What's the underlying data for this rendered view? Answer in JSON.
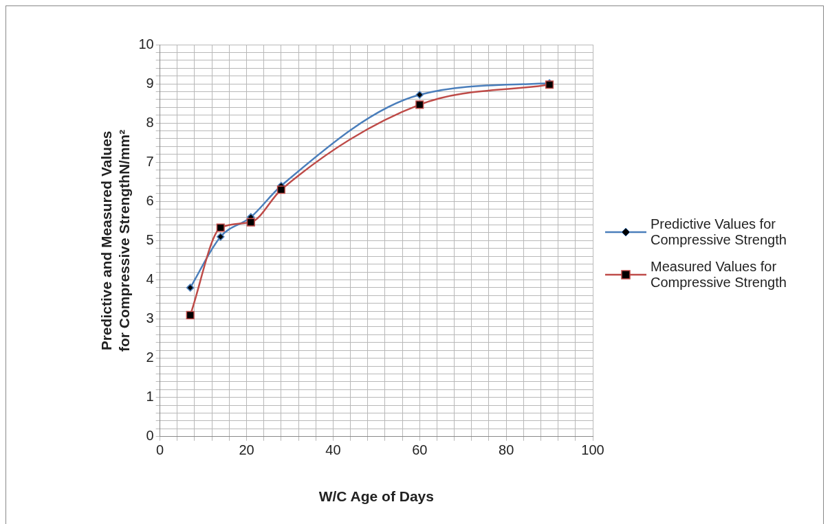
{
  "chart_data": {
    "type": "line",
    "xlabel": "W/C Age of Days",
    "ylabel": "Predictive and Measured Values for Compressive StrengthN/mm²",
    "xlim": [
      0,
      100
    ],
    "xticks": [
      0,
      {
        "value": 4,
        "label": null
      },
      {
        "value": 8,
        "label": null
      },
      {
        "value": 12,
        "label": null
      },
      {
        "value": 16,
        "label": null
      },
      20,
      {
        "value": 24,
        "label": null
      },
      {
        "value": 28,
        "label": null
      },
      {
        "value": 32,
        "label": null
      },
      {
        "value": 36,
        "label": null
      },
      40,
      {
        "value": 44,
        "label": null
      },
      {
        "value": 48,
        "label": null
      },
      {
        "value": 52,
        "label": null
      },
      {
        "value": 56,
        "label": null
      },
      60,
      {
        "value": 64,
        "label": null
      },
      {
        "value": 68,
        "label": null
      },
      {
        "value": 72,
        "label": null
      },
      {
        "value": 76,
        "label": null
      },
      80,
      {
        "value": 84,
        "label": null
      },
      {
        "value": 88,
        "label": null
      },
      {
        "value": 92,
        "label": null
      },
      {
        "value": 96,
        "label": null
      },
      100
    ],
    "ylim": [
      0,
      10
    ],
    "yticks": [
      0,
      {
        "value": 0.2,
        "label": null
      },
      {
        "value": 0.4,
        "label": null
      },
      {
        "value": 0.6,
        "label": null
      },
      {
        "value": 0.8,
        "label": null
      },
      1,
      {
        "value": 1.2,
        "label": null
      },
      {
        "value": 1.4,
        "label": null
      },
      {
        "value": 1.6,
        "label": null
      },
      {
        "value": 1.8,
        "label": null
      },
      2,
      {
        "value": 2.2,
        "label": null
      },
      {
        "value": 2.4,
        "label": null
      },
      {
        "value": 2.6,
        "label": null
      },
      {
        "value": 2.8,
        "label": null
      },
      3,
      {
        "value": 3.2,
        "label": null
      },
      {
        "value": 3.4,
        "label": null
      },
      {
        "value": 3.6,
        "label": null
      },
      {
        "value": 3.8,
        "label": null
      },
      4,
      {
        "value": 4.2,
        "label": null
      },
      {
        "value": 4.4,
        "label": null
      },
      {
        "value": 4.6,
        "label": null
      },
      {
        "value": 4.8,
        "label": null
      },
      5,
      {
        "value": 5.2,
        "label": null
      },
      {
        "value": 5.4,
        "label": null
      },
      {
        "value": 5.6,
        "label": null
      },
      {
        "value": 5.8,
        "label": null
      },
      6,
      {
        "value": 6.2,
        "label": null
      },
      {
        "value": 6.4,
        "label": null
      },
      {
        "value": 6.6,
        "label": null
      },
      {
        "value": 6.8,
        "label": null
      },
      7,
      {
        "value": 7.2,
        "label": null
      },
      {
        "value": 7.4,
        "label": null
      },
      {
        "value": 7.6,
        "label": null
      },
      {
        "value": 7.8,
        "label": null
      },
      8,
      {
        "value": 8.2,
        "label": null
      },
      {
        "value": 8.4,
        "label": null
      },
      {
        "value": 8.6,
        "label": null
      },
      {
        "value": 8.8,
        "label": null
      },
      9,
      {
        "value": 9.2,
        "label": null
      },
      {
        "value": 9.4,
        "label": null
      },
      {
        "value": 9.6,
        "label": null
      },
      {
        "value": 9.8,
        "label": null
      },
      10
    ],
    "grid": true,
    "legend": "right",
    "series": [
      {
        "name": "Predictive Values for Compressive Strength",
        "color": "#4a7ebb",
        "marker": "diamond",
        "x": [
          7,
          14,
          21,
          28,
          60,
          90
        ],
        "values": [
          3.8,
          5.1,
          5.6,
          6.4,
          8.72,
          9.02
        ]
      },
      {
        "name": "Measured Values for Compressive Strength",
        "color": "#be4b48",
        "marker": "square",
        "x": [
          7,
          14,
          21,
          28,
          60,
          90
        ],
        "values": [
          3.1,
          5.33,
          5.47,
          6.3,
          8.47,
          8.98
        ]
      }
    ]
  }
}
